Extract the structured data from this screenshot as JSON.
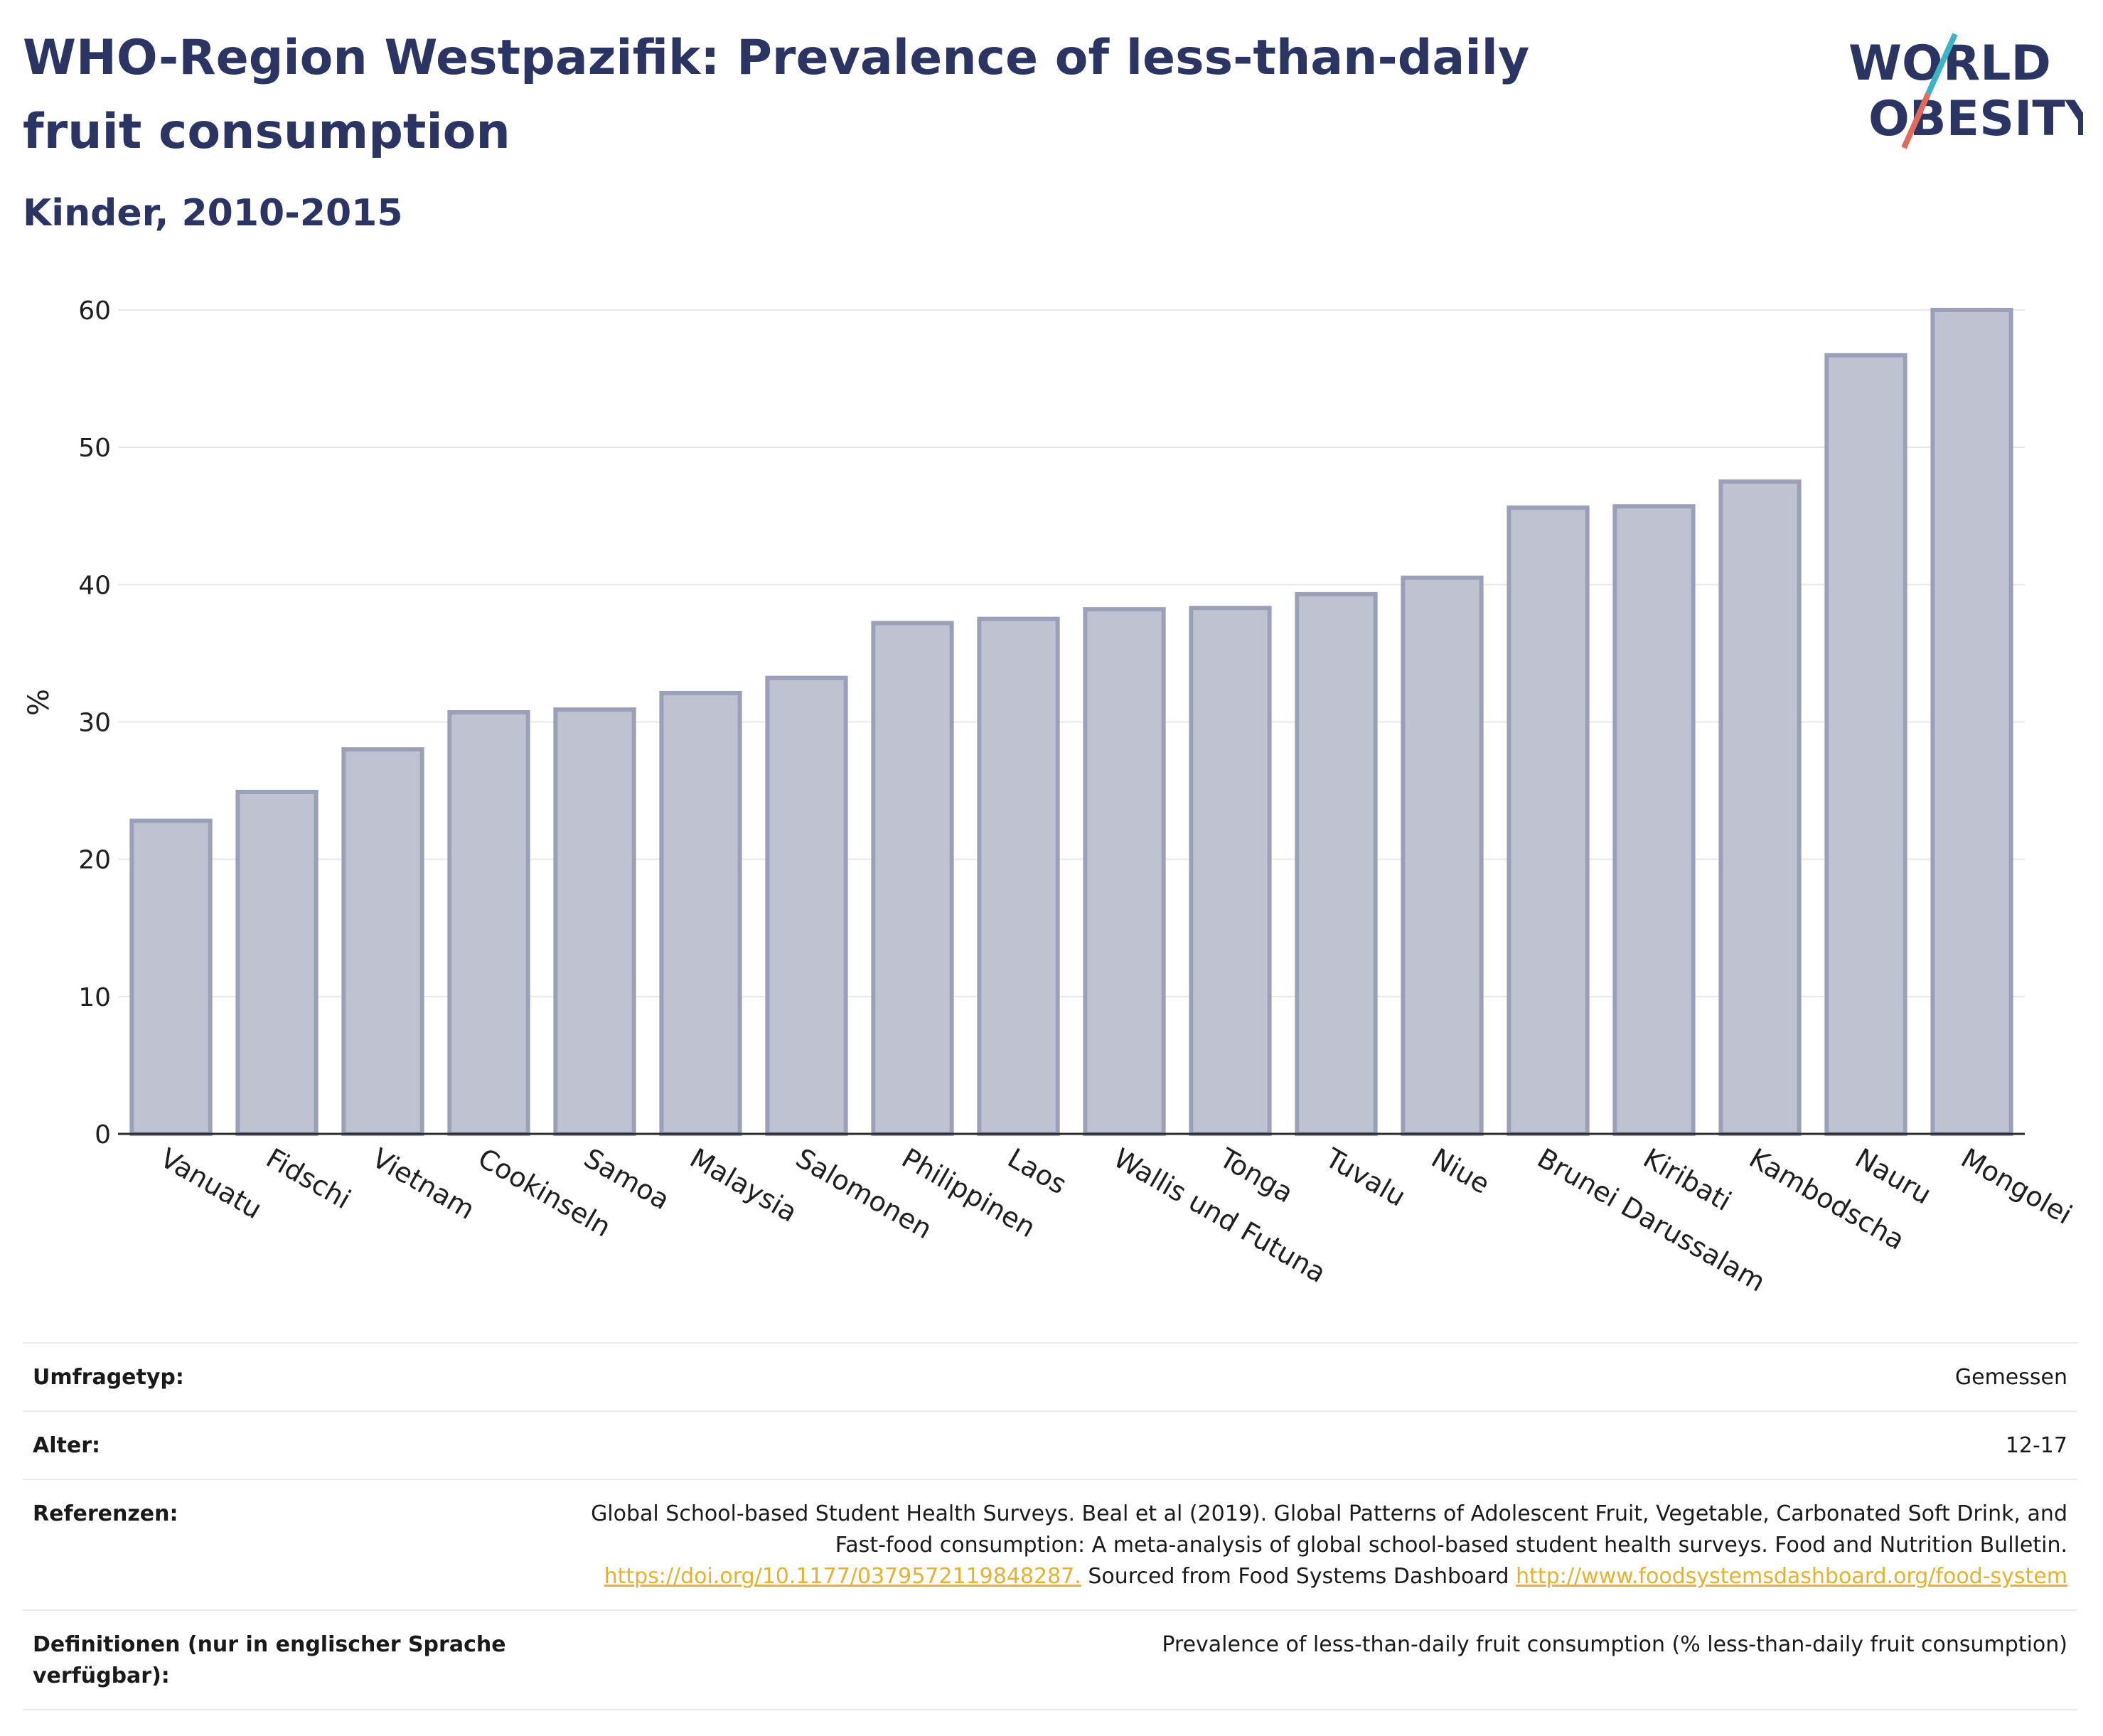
{
  "header": {
    "title": "WHO-Region Westpazifik: Prevalence of less-than-daily fruit consumption",
    "subtitle": "Kinder, 2010-2015"
  },
  "logo": {
    "line1": "WORLD",
    "line2": "OBESITY",
    "icon": "world-obesity-logo"
  },
  "colors": {
    "bar_fill": "#bfc3d1",
    "bar_stroke": "#9aa0b8",
    "text_dark": "#2b3563",
    "link": "#e8b12b"
  },
  "chart_data": {
    "type": "bar",
    "categories": [
      "Vanuatu",
      "Fidschi",
      "Vietnam",
      "Cookinseln",
      "Samoa",
      "Malaysia",
      "Salomonen",
      "Philippinen",
      "Laos",
      "Wallis und Futuna",
      "Tonga",
      "Tuvalu",
      "Niue",
      "Brunei Darussalam",
      "Kiribati",
      "Kambodscha",
      "Nauru",
      "Mongolei"
    ],
    "values": [
      22.8,
      24.9,
      28.0,
      30.7,
      30.9,
      32.1,
      33.2,
      37.2,
      37.5,
      38.2,
      38.3,
      39.3,
      40.5,
      45.6,
      45.7,
      47.5,
      56.7,
      60.0
    ],
    "ylabel": "%",
    "ylim": [
      0,
      60
    ],
    "yticks": [
      0,
      10,
      20,
      30,
      40,
      50,
      60
    ],
    "grid": true
  },
  "info": {
    "survey_label": "Umfragetyp:",
    "survey_value": "Gemessen",
    "age_label": "Alter:",
    "age_value": "12-17",
    "refs_label": "Referenzen:",
    "refs_text1": "Global School-based Student Health Surveys. Beal et al (2019). Global Patterns of Adolescent Fruit, Vegetable, Carbonated Soft Drink, and Fast-food consumption: A meta-analysis of global school-based student health surveys. Food and Nutrition Bulletin.",
    "refs_link1": "https://doi.org/10.1177/0379572119848287.",
    "refs_text2": "Sourced from Food Systems Dashboard",
    "refs_link2": "http://www.foodsystemsdashboard.org/food-system",
    "defs_label": "Definitionen (nur in englischer Sprache verfügbar):",
    "defs_value": "Prevalence of less-than-daily fruit consumption (% less-than-daily fruit consumption)"
  }
}
